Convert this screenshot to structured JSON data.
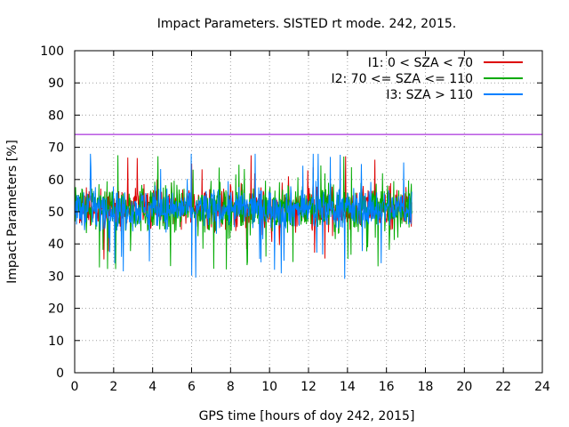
{
  "chart_data": {
    "type": "line",
    "title": "Impact Parameters. SISTED rt mode. 242, 2015.",
    "xlabel": "GPS time [hours of doy 242, 2015]",
    "ylabel": "Impact Parameters [%]",
    "xlim": [
      0,
      24
    ],
    "ylim": [
      0,
      100
    ],
    "x_ticks": [
      0,
      2,
      4,
      6,
      8,
      10,
      12,
      14,
      16,
      18,
      20,
      22,
      24
    ],
    "y_ticks": [
      0,
      10,
      20,
      30,
      40,
      50,
      60,
      70,
      80,
      90,
      100
    ],
    "grid": true,
    "legend_position": "top-right",
    "threshold": {
      "y": 74,
      "color": "#9400d3"
    },
    "data_span_hours": [
      0,
      17.3
    ],
    "series": [
      {
        "name": "I1: 0 < SZA < 70",
        "color": "#dd0000",
        "mean": 51,
        "typical_low": 45,
        "typical_high": 58,
        "min": 33,
        "max": 67.5,
        "order": 0
      },
      {
        "name": "I2: 70 <= SZA <= 110",
        "color": "#00aa00",
        "mean": 51,
        "typical_low": 44,
        "typical_high": 59,
        "min": 32,
        "max": 68.5,
        "order": 1
      },
      {
        "name": "I3: SZA > 110",
        "color": "#0080ff",
        "mean": 51,
        "typical_low": 45,
        "typical_high": 57,
        "min": 29,
        "max": 68,
        "order": 2
      }
    ]
  }
}
